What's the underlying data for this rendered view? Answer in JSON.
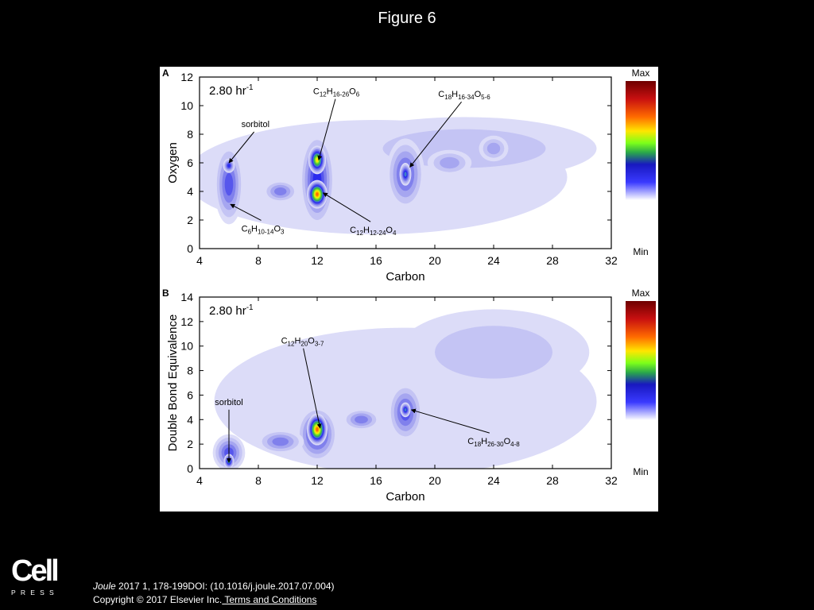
{
  "title": "Figure 6",
  "footer": {
    "journal": "Joule",
    "citation": " 2017 1, 178-199DOI: (10.1016/j.joule.2017.07.004)",
    "copyright": "Copyright © 2017 Elsevier Inc.",
    "terms_link": " Terms and Conditions"
  },
  "logo": {
    "word": "Cell",
    "sub": "PRESS"
  },
  "chart_data": [
    {
      "type": "heatmap",
      "panel_label": "A",
      "inset": "2.80 hr",
      "inset_sup": "-1",
      "xlabel": "Carbon",
      "ylabel": "Oxygen",
      "xlim": [
        4,
        32
      ],
      "ylim": [
        0,
        12
      ],
      "xticks": [
        4,
        8,
        12,
        16,
        20,
        24,
        28,
        32
      ],
      "yticks": [
        0,
        2,
        4,
        6,
        8,
        10,
        12
      ],
      "colorbar": {
        "max_label": "Max",
        "min_label": "Min"
      },
      "blobs": [
        {
          "x": 16,
          "y": 5,
          "rx": 13,
          "ry": 4.0,
          "level": 0.12
        },
        {
          "x": 22,
          "y": 7,
          "rx": 9,
          "ry": 2.2,
          "level": 0.18
        },
        {
          "x": 6,
          "y": 4.5,
          "rx": 1.0,
          "ry": 2.8,
          "level": 0.32
        },
        {
          "x": 6,
          "y": 5.8,
          "rx": 0.4,
          "ry": 0.5,
          "level": 0.42
        },
        {
          "x": 12,
          "y": 4.8,
          "rx": 1.2,
          "ry": 3.3,
          "level": 0.4
        },
        {
          "x": 12,
          "y": 6.2,
          "rx": 0.6,
          "ry": 1.0,
          "level": 0.7
        },
        {
          "x": 12,
          "y": 3.8,
          "rx": 0.7,
          "ry": 1.0,
          "level": 0.85
        },
        {
          "x": 18,
          "y": 5.2,
          "rx": 1.3,
          "ry": 2.5,
          "level": 0.32
        },
        {
          "x": 18,
          "y": 5.2,
          "rx": 0.4,
          "ry": 0.8,
          "level": 0.48
        },
        {
          "x": 9.5,
          "y": 4,
          "rx": 1.2,
          "ry": 0.8,
          "level": 0.26
        },
        {
          "x": 21,
          "y": 6,
          "rx": 1.5,
          "ry": 0.9,
          "level": 0.24
        },
        {
          "x": 24,
          "y": 7,
          "rx": 1.0,
          "ry": 0.9,
          "level": 0.24
        }
      ],
      "annotations": [
        {
          "text": "sorbitol",
          "tx": 7.8,
          "ty": 8.5,
          "px": 6.0,
          "py": 6.0
        },
        {
          "text": "C6H10-14O3",
          "tx": 8.3,
          "ty": 1.2,
          "px": 6.1,
          "py": 3.1
        },
        {
          "text": "C12H16-26O6",
          "tx": 13.3,
          "ty": 10.8,
          "px": 12.1,
          "py": 6.2
        },
        {
          "text": "C12H12-24O4",
          "tx": 15.8,
          "ty": 1.1,
          "px": 12.4,
          "py": 3.9
        },
        {
          "text": "C18H16-34O5-6",
          "tx": 22.0,
          "ty": 10.6,
          "px": 18.3,
          "py": 5.7
        }
      ]
    },
    {
      "type": "heatmap",
      "panel_label": "B",
      "inset": "2.80 hr",
      "inset_sup": "-1",
      "xlabel": "Carbon",
      "ylabel": "Double Bond Equivalence",
      "xlim": [
        4,
        32
      ],
      "ylim": [
        0,
        14
      ],
      "xticks": [
        4,
        8,
        12,
        16,
        20,
        24,
        28,
        32
      ],
      "yticks": [
        0,
        2,
        4,
        6,
        8,
        10,
        12,
        14
      ],
      "colorbar": {
        "max_label": "Max",
        "min_label": "Min"
      },
      "blobs": [
        {
          "x": 18,
          "y": 5.5,
          "rx": 13,
          "ry": 6.0,
          "level": 0.1
        },
        {
          "x": 24,
          "y": 9.5,
          "rx": 6.5,
          "ry": 3.5,
          "level": 0.16
        },
        {
          "x": 6,
          "y": 1.3,
          "rx": 1.1,
          "ry": 1.5,
          "level": 0.34
        },
        {
          "x": 6,
          "y": 0.6,
          "rx": 0.35,
          "ry": 0.6,
          "level": 0.55
        },
        {
          "x": 12,
          "y": 2.8,
          "rx": 1.4,
          "ry": 2.3,
          "level": 0.4
        },
        {
          "x": 12,
          "y": 3.2,
          "rx": 0.7,
          "ry": 1.3,
          "level": 0.85
        },
        {
          "x": 18,
          "y": 4.6,
          "rx": 1.2,
          "ry": 2.4,
          "level": 0.33
        },
        {
          "x": 18,
          "y": 4.8,
          "rx": 0.35,
          "ry": 0.6,
          "level": 0.46
        },
        {
          "x": 9.5,
          "y": 2.2,
          "rx": 1.6,
          "ry": 1.0,
          "level": 0.28
        },
        {
          "x": 15,
          "y": 4,
          "rx": 1.3,
          "ry": 0.9,
          "level": 0.26
        }
      ],
      "annotations": [
        {
          "text": "sorbitol",
          "tx": 6.0,
          "ty": 5.2,
          "px": 6.0,
          "py": 0.5
        },
        {
          "text": "C12H20O3-7",
          "tx": 11.0,
          "ty": 10.2,
          "px": 12.2,
          "py": 3.3
        },
        {
          "text": "C18H26-30O4-8",
          "tx": 24.0,
          "ty": 2.0,
          "px": 18.4,
          "py": 4.8
        }
      ]
    }
  ]
}
